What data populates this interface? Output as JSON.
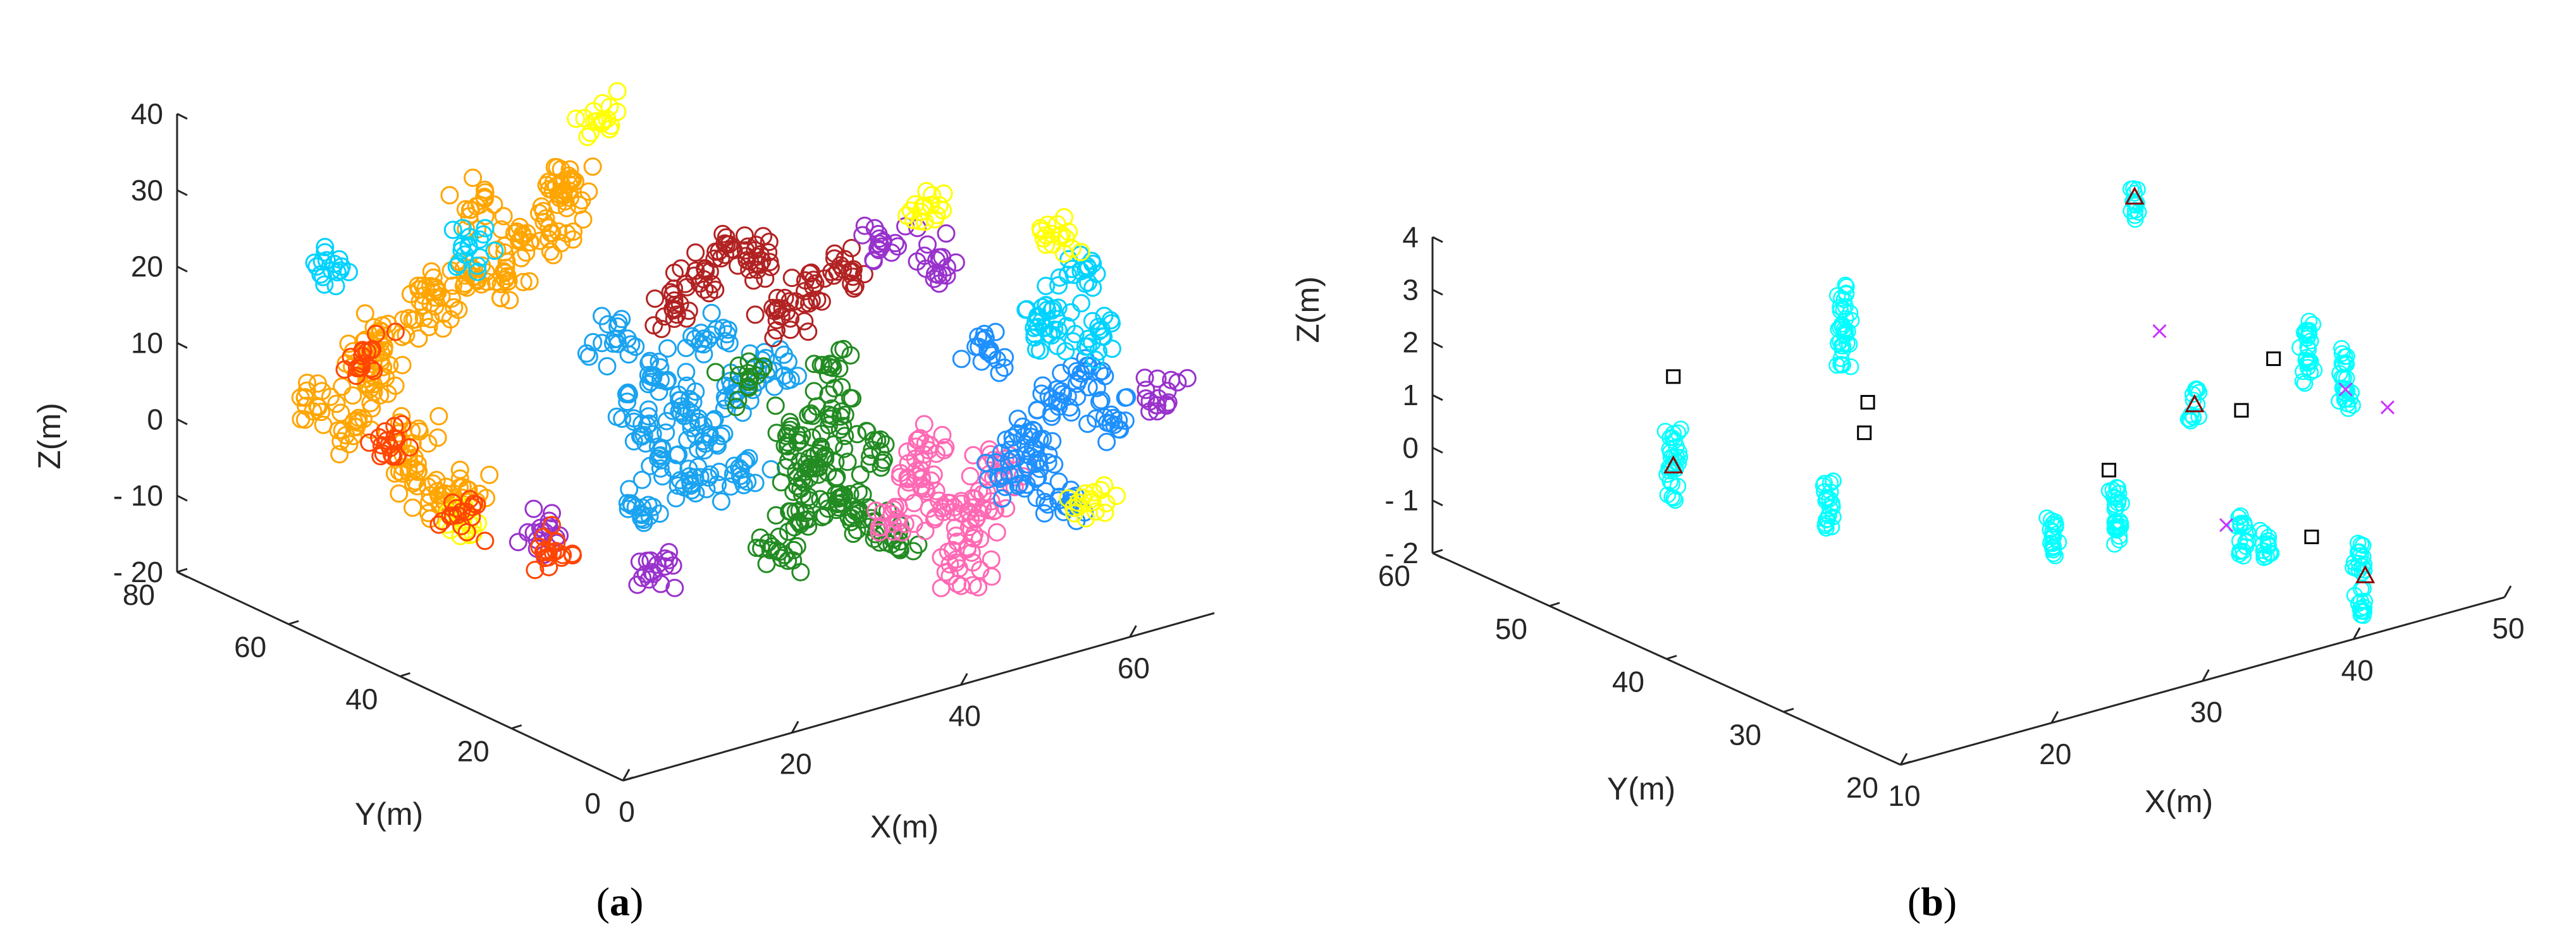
{
  "chart_data": [
    {
      "type": "scatter",
      "panel_label": "a",
      "xlabel": "X(m)",
      "ylabel": "Y(m)",
      "zlabel": "Z(m)",
      "xlim": [
        0,
        70
      ],
      "ylim": [
        0,
        80
      ],
      "zlim": [
        -20,
        40
      ],
      "xticks": [
        0,
        20,
        40,
        60
      ],
      "yticks": [
        0,
        20,
        40,
        60,
        80
      ],
      "zticks": [
        -20,
        -10,
        0,
        10,
        20,
        30,
        40
      ],
      "xtick_labels": [
        "0",
        "20",
        "40",
        "60"
      ],
      "ytick_labels": [
        "0",
        "20",
        "40",
        "60",
        "80"
      ],
      "ztick_labels": [
        "- 20",
        "- 10",
        "0",
        "10",
        "20",
        "30",
        "40"
      ],
      "marker": "circle",
      "grid": false,
      "legend": "none",
      "series": [
        {
          "color": "#ffa500",
          "points": [
            [
              18,
              55,
              22
            ],
            [
              16,
              60,
              18
            ],
            [
              14,
              64,
              12
            ],
            [
              14,
              66,
              5
            ],
            [
              16,
              62,
              -2
            ],
            [
              20,
              58,
              -8
            ],
            [
              22,
              52,
              26
            ],
            [
              24,
              48,
              28
            ],
            [
              12,
              66,
              0
            ],
            [
              15,
              60,
              -6
            ],
            [
              20,
              56,
              30
            ],
            [
              26,
              50,
              32
            ],
            [
              10,
              70,
              2
            ],
            [
              13,
              64,
              10
            ],
            [
              17,
              58,
              16
            ],
            [
              22,
              54,
              20
            ],
            [
              18,
              60,
              -10
            ],
            [
              24,
              46,
              34
            ]
          ]
        },
        {
          "color": "#1aa3f0",
          "points": [
            [
              30,
              40,
              10
            ],
            [
              32,
              38,
              6
            ],
            [
              34,
              36,
              2
            ],
            [
              33,
              38,
              -4
            ],
            [
              30,
              42,
              -8
            ],
            [
              28,
              44,
              14
            ],
            [
              36,
              34,
              8
            ],
            [
              35,
              32,
              -2
            ],
            [
              31,
              40,
              0
            ],
            [
              29,
              42,
              4
            ],
            [
              37,
              30,
              12
            ],
            [
              33,
              36,
              16
            ]
          ]
        },
        {
          "color": "#228b22",
          "points": [
            [
              38,
              28,
              4
            ],
            [
              40,
              26,
              0
            ],
            [
              42,
              24,
              -4
            ],
            [
              40,
              28,
              -8
            ],
            [
              38,
              30,
              -12
            ],
            [
              44,
              22,
              2
            ],
            [
              41,
              25,
              6
            ],
            [
              39,
              27,
              -2
            ],
            [
              43,
              23,
              -6
            ],
            [
              36,
              32,
              10
            ],
            [
              45,
              20,
              -10
            ],
            [
              42,
              26,
              12
            ]
          ]
        },
        {
          "color": "#ff69b4",
          "points": [
            [
              48,
              20,
              -2
            ],
            [
              50,
              18,
              -6
            ],
            [
              52,
              16,
              -10
            ],
            [
              49,
              20,
              2
            ],
            [
              51,
              17,
              -14
            ],
            [
              53,
              15,
              -4
            ],
            [
              47,
              22,
              -8
            ],
            [
              54,
              14,
              0
            ]
          ]
        },
        {
          "color": "#b22222",
          "points": [
            [
              32,
              34,
              24
            ],
            [
              36,
              30,
              26
            ],
            [
              40,
              28,
              22
            ],
            [
              34,
              32,
              28
            ],
            [
              38,
              29,
              20
            ],
            [
              44,
              26,
              24
            ],
            [
              30,
              36,
              20
            ]
          ]
        },
        {
          "color": "#1e90ff",
          "points": [
            [
              56,
              12,
              4
            ],
            [
              58,
              10,
              8
            ],
            [
              55,
              14,
              -2
            ],
            [
              60,
              8,
              12
            ],
            [
              57,
              12,
              0
            ],
            [
              62,
              6,
              6
            ],
            [
              54,
              16,
              14
            ],
            [
              59,
              10,
              -6
            ]
          ]
        },
        {
          "color": "#00d2ff",
          "points": [
            [
              20,
              58,
              24
            ],
            [
              58,
              12,
              20
            ],
            [
              60,
              10,
              24
            ],
            [
              56,
              8,
              18
            ],
            [
              12,
              70,
              20
            ],
            [
              62,
              8,
              16
            ]
          ]
        },
        {
          "color": "#9932cc",
          "points": [
            [
              66,
              4,
              8
            ],
            [
              44,
              20,
              30
            ],
            [
              26,
              54,
              -14
            ],
            [
              48,
              16,
              28
            ],
            [
              30,
              40,
              -16
            ]
          ]
        },
        {
          "color": "#ffff00",
          "points": [
            [
              62,
              10,
              -6
            ],
            [
              60,
              14,
              28
            ],
            [
              22,
              62,
              -14
            ],
            [
              50,
              22,
              32
            ],
            [
              28,
              46,
              42
            ]
          ]
        },
        {
          "color": "#ff4500",
          "points": [
            [
              16,
              66,
              -4
            ],
            [
              20,
              60,
              -12
            ],
            [
              26,
              52,
              -16
            ],
            [
              14,
              68,
              8
            ]
          ]
        }
      ]
    },
    {
      "type": "scatter",
      "panel_label": "b",
      "xlabel": "X(m)",
      "ylabel": "Y(m)",
      "zlabel": "Z(m)",
      "xlim": [
        10,
        50
      ],
      "ylim": [
        20,
        60
      ],
      "zlim": [
        -2,
        4
      ],
      "xticks": [
        10,
        20,
        30,
        40,
        50
      ],
      "yticks": [
        20,
        30,
        40,
        50,
        60
      ],
      "zticks": [
        -2,
        -1,
        0,
        1,
        2,
        3,
        4
      ],
      "xtick_labels": [
        "10",
        "20",
        "30",
        "40",
        "50"
      ],
      "ytick_labels": [
        "20",
        "30",
        "40",
        "50",
        "60"
      ],
      "ztick_labels": [
        "- 2",
        "- 1",
        "0",
        "1",
        "2",
        "3",
        "4"
      ],
      "grid": false,
      "legend": "none",
      "series": [
        {
          "marker": "circle",
          "color": "#00ffff",
          "clusters": [
            {
              "x": 12,
              "y": 42,
              "z_center": 1.3,
              "z_span": 0.7
            },
            {
              "x": 16,
              "y": 34,
              "z_center": 1.1,
              "z_span": 0.5
            },
            {
              "x": 24,
              "y": 43,
              "z_center": 2.9,
              "z_span": 0.8
            },
            {
              "x": 27,
              "y": 29,
              "z_center": 0.1,
              "z_span": 0.4
            },
            {
              "x": 29,
              "y": 26,
              "z_center": 0.6,
              "z_span": 0.6
            },
            {
              "x": 41,
              "y": 40,
              "z_center": 4.2,
              "z_span": 0.3
            },
            {
              "x": 38,
              "y": 31,
              "z_center": 1.5,
              "z_span": 0.3
            },
            {
              "x": 35,
              "y": 23,
              "z_center": 0.1,
              "z_span": 0.4
            },
            {
              "x": 35,
              "y": 21,
              "z_center": 0.1,
              "z_span": 0.3
            },
            {
              "x": 39,
              "y": 18,
              "z_center": -0.6,
              "z_span": 0.7
            },
            {
              "x": 47,
              "y": 33,
              "z_center": 1.6,
              "z_span": 0.6
            },
            {
              "x": 48,
              "y": 31,
              "z_center": 1.2,
              "z_span": 0.6
            }
          ]
        },
        {
          "marker": "square",
          "color": "#000000",
          "points": [
            [
              12,
              42,
              3.0
            ],
            [
              20,
              36,
              1.9
            ],
            [
              21,
              37,
              2.3
            ],
            [
              30,
              28,
              1.2
            ],
            [
              38,
              27,
              1.8
            ],
            [
              38,
              21,
              0.0
            ],
            [
              44,
              32,
              1.8
            ]
          ]
        },
        {
          "marker": "triangle",
          "color": "#8b0000",
          "points": [
            [
              12,
              42,
              1.3
            ],
            [
              41,
              40,
              4.3
            ],
            [
              38,
              31,
              1.5
            ],
            [
              40,
              19,
              -0.7
            ]
          ]
        },
        {
          "marker": "cross",
          "color": "#cc33ff",
          "points": [
            [
              38,
              34,
              2.6
            ],
            [
              37,
              27,
              -0.3
            ],
            [
              48,
              31,
              1.0
            ],
            [
              50,
              30,
              0.6
            ]
          ]
        }
      ]
    }
  ],
  "captions": {
    "a": {
      "open": "(",
      "letter": "a",
      "close": ")"
    },
    "b": {
      "open": "(",
      "letter": "b",
      "close": ")"
    }
  }
}
